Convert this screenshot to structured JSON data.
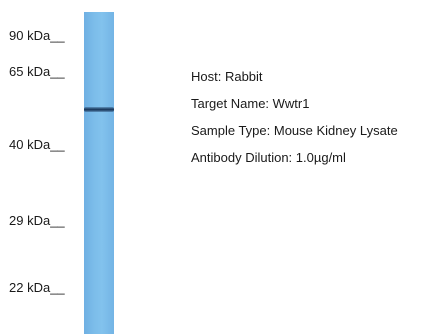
{
  "markers": [
    {
      "label": "90 kDa__",
      "kda": 90
    },
    {
      "label": "65 kDa__",
      "kda": 65
    },
    {
      "label": "40 kDa__",
      "kda": 40
    },
    {
      "label": "29 kDa__",
      "kda": 29
    },
    {
      "label": "22 kDa__",
      "kda": 22
    }
  ],
  "info": {
    "host": "Host: Rabbit",
    "target": "Target Name: Wwtr1",
    "sample": "Sample Type: Mouse Kidney Lysate",
    "dilution": "Antibody Dilution: 1.0µg/ml"
  },
  "colors": {
    "lane": "#7cbdea",
    "band": "#1c3b5e"
  }
}
